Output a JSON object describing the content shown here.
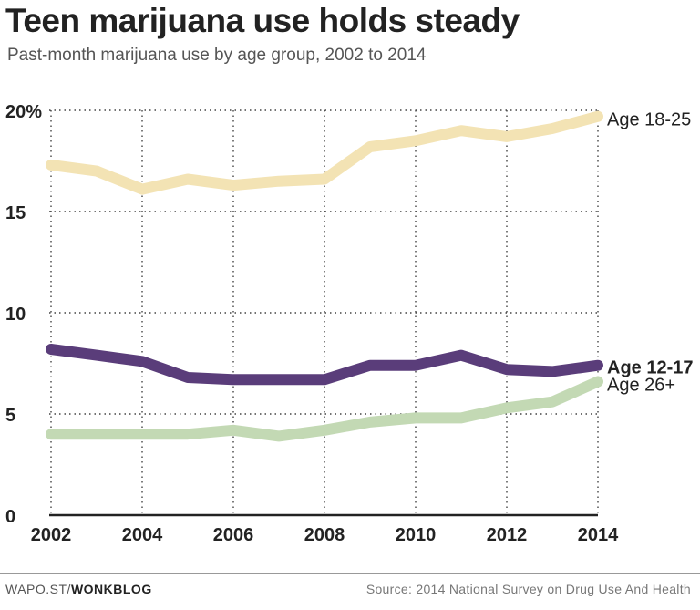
{
  "title": "Teen marijuana use holds steady",
  "subtitle": "Past-month marijuana use by age group, 2002 to 2014",
  "footer": {
    "site_prefix": "WAPO.ST/",
    "site_brand": "WONKBLOG",
    "source": "Source: 2014 National Survey on Drug Use And Health"
  },
  "chart_data": {
    "type": "line",
    "x": [
      2002,
      2003,
      2004,
      2005,
      2006,
      2007,
      2008,
      2009,
      2010,
      2011,
      2012,
      2013,
      2014
    ],
    "x_ticks": [
      "2002",
      "2004",
      "2006",
      "2008",
      "2010",
      "2012",
      "2014"
    ],
    "y_ticks": [
      "0",
      "5",
      "10",
      "15",
      "20%"
    ],
    "ylim": [
      0,
      20
    ],
    "xlim": [
      2002,
      2014
    ],
    "grid": "dotted",
    "series": [
      {
        "name": "Age 18-25",
        "color": "#f3e3b4",
        "label_bold": false,
        "values": [
          17.3,
          17.0,
          16.1,
          16.6,
          16.3,
          16.5,
          16.6,
          18.2,
          18.5,
          19.0,
          18.7,
          19.1,
          19.7
        ]
      },
      {
        "name": "Age 26+",
        "color": "#c3d9b4",
        "label_bold": false,
        "values": [
          4.0,
          4.0,
          4.0,
          4.0,
          4.2,
          3.9,
          4.2,
          4.6,
          4.8,
          4.8,
          5.3,
          5.6,
          6.6
        ]
      },
      {
        "name": "Age 12-17",
        "color": "#5a3d7a",
        "label_bold": true,
        "values": [
          8.2,
          7.9,
          7.6,
          6.8,
          6.7,
          6.7,
          6.7,
          7.4,
          7.4,
          7.9,
          7.2,
          7.1,
          7.4
        ]
      }
    ]
  }
}
